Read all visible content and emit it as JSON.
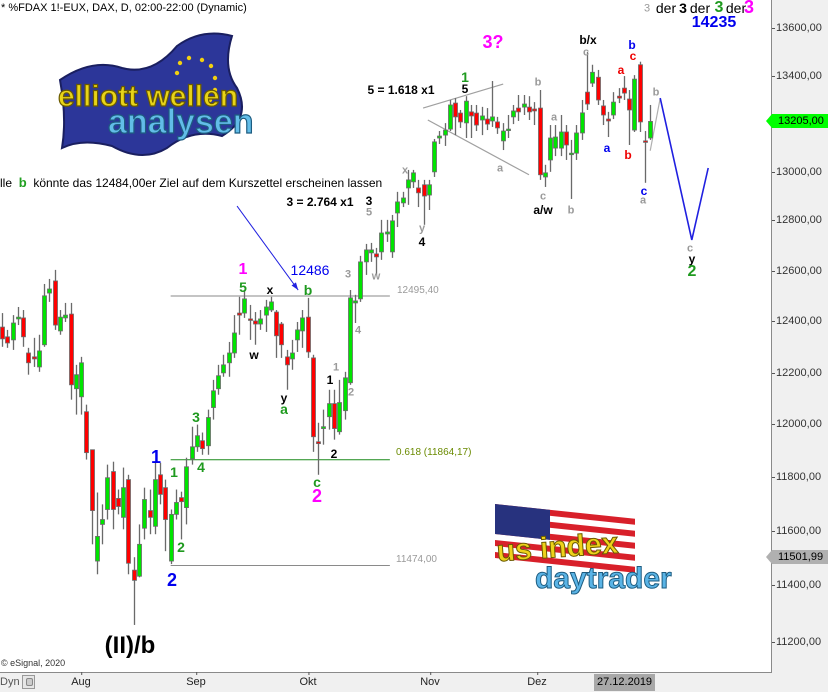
{
  "header": {
    "title": "* %FDAX 1!-EUX, DAX, D, 02:00-22:00 (Dynamic)"
  },
  "note": {
    "prefix": "lle",
    "wave": "b",
    "text": "könnte das 12484,00er Ziel auf dem Kurszettel erscheinen lassen"
  },
  "copyright": "© eSignal, 2020",
  "logos": {
    "elliott": {
      "line1": "elliott wellen",
      "line2": "analysen"
    },
    "usindex": {
      "line1": "us index",
      "line2": "daytrader"
    }
  },
  "labels": [
    "3",
    "der",
    "3",
    "der",
    "3",
    "der",
    "3",
    "14235",
    "3?",
    "1",
    "5",
    "5 = 1.618 x1",
    "b/x",
    "c",
    "b",
    "c",
    "a",
    "b",
    "a",
    "a",
    "b",
    "b",
    "c",
    "a/w",
    "a",
    "b",
    "c",
    "a",
    "c",
    "y",
    "2",
    "x",
    "y",
    "4",
    "3 = 2.764 x1",
    "3",
    "5",
    "3",
    "w",
    "12486",
    "1",
    "5",
    "x",
    "b",
    "w",
    "y",
    "a",
    "1",
    "1",
    "4",
    "2",
    "2",
    "c",
    "2",
    "1",
    "1",
    "3",
    "4",
    "2",
    "2",
    "(II)/b"
  ],
  "level_labels": {
    "l1": "12495,40",
    "l2": "0.618 (11864,17)",
    "l3": "11474,00"
  },
  "price_axis": {
    "ticks": [
      "13600,00",
      "13400,00",
      "13000,00",
      "12800,00",
      "12600,00",
      "12400,00",
      "12200,00",
      "12000,00",
      "11800,00",
      "11600,00",
      "11400,00",
      "11200,00"
    ],
    "current_price": "13205,00",
    "marker_price": "11501,99"
  },
  "time_axis": {
    "months": [
      "Aug",
      "Sep",
      "Okt",
      "Nov",
      "Dez"
    ],
    "cursor_date": "27.12.2019",
    "dyn_label": "Dyn"
  },
  "colors": {
    "up": "#00e400",
    "down": "#ff0000",
    "wick": "#6a6a6a",
    "projection": "#2020e0",
    "level_fib": "#1a8a1a",
    "level": "#8a8a8a",
    "arrow": "#2020e0"
  },
  "chart_data": {
    "type": "candlestick",
    "title": "* %FDAX 1!-EUX, DAX, D, 02:00-22:00 (Dynamic)",
    "y_scale": "log",
    "ylim": [
      11120,
      13700
    ],
    "y_ticks": [
      13600,
      13400,
      13000,
      12800,
      12600,
      12400,
      12200,
      12000,
      11800,
      11600,
      11400,
      11200
    ],
    "x_ticks": [
      {
        "label": "Aug",
        "bar": 15
      },
      {
        "label": "Sep",
        "bar": 37
      },
      {
        "label": "Okt",
        "bar": 58
      },
      {
        "label": "Nov",
        "bar": 81
      },
      {
        "label": "Dez",
        "bar": 101.5
      }
    ],
    "ohlc_fields": [
      "open",
      "high",
      "low",
      "close"
    ],
    "ohlc": [
      [
        12373,
        12428,
        12296,
        12327
      ],
      [
        12335,
        12362,
        12292,
        12311
      ],
      [
        12323,
        12420,
        12284,
        12389
      ],
      [
        12405,
        12452,
        12381,
        12412
      ],
      [
        12409,
        12440,
        12296,
        12335
      ],
      [
        12272,
        12292,
        12188,
        12234
      ],
      [
        12257,
        12331,
        12218,
        12249
      ],
      [
        12218,
        12343,
        12199,
        12280
      ],
      [
        12304,
        12543,
        12296,
        12496
      ],
      [
        12507,
        12563,
        12472,
        12523
      ],
      [
        12555,
        12599,
        12362,
        12381
      ],
      [
        12358,
        12440,
        12343,
        12412
      ],
      [
        12409,
        12468,
        12393,
        12420
      ],
      [
        12424,
        12468,
        12092,
        12149
      ],
      [
        12134,
        12226,
        12035,
        12188
      ],
      [
        12103,
        12257,
        12035,
        12234
      ],
      [
        12046,
        12073,
        11865,
        11891
      ],
      [
        11902,
        11902,
        11551,
        11675
      ],
      [
        11490,
        11742,
        11442,
        11580
      ],
      [
        11624,
        11698,
        11551,
        11642
      ],
      [
        11679,
        11846,
        11642,
        11797
      ],
      [
        11820,
        11857,
        11606,
        11679
      ],
      [
        11720,
        11753,
        11661,
        11690
      ],
      [
        11650,
        11835,
        11606,
        11760
      ],
      [
        11790,
        11808,
        11442,
        11482
      ],
      [
        11457,
        11504,
        11260,
        11420
      ],
      [
        11435,
        11624,
        11431,
        11551
      ],
      [
        11610,
        11760,
        11569,
        11716
      ],
      [
        11675,
        11753,
        11588,
        11650
      ],
      [
        11617,
        11853,
        11588,
        11790
      ],
      [
        11808,
        11853,
        11698,
        11735
      ],
      [
        11760,
        11790,
        11526,
        11642
      ],
      [
        11490,
        11679,
        11479,
        11661
      ],
      [
        11661,
        11753,
        11642,
        11705
      ],
      [
        11723,
        11745,
        11569,
        11708
      ],
      [
        11686,
        11872,
        11624,
        11838
      ],
      [
        11868,
        11989,
        11846,
        11913
      ],
      [
        11913,
        11997,
        11894,
        11955
      ],
      [
        11936,
        11967,
        11883,
        11906
      ],
      [
        11917,
        12054,
        11883,
        12024
      ],
      [
        12062,
        12168,
        12016,
        12126
      ],
      [
        12134,
        12226,
        12111,
        12184
      ],
      [
        12195,
        12265,
        12180,
        12226
      ],
      [
        12234,
        12315,
        12180,
        12272
      ],
      [
        12272,
        12420,
        12253,
        12350
      ],
      [
        12428,
        12492,
        12343,
        12420
      ],
      [
        12428,
        12519,
        12409,
        12484
      ],
      [
        12405,
        12460,
        12323,
        12401
      ],
      [
        12397,
        12432,
        12304,
        12385
      ],
      [
        12385,
        12440,
        12362,
        12405
      ],
      [
        12420,
        12480,
        12354,
        12452
      ],
      [
        12440,
        12492,
        12432,
        12472
      ],
      [
        12432,
        12440,
        12253,
        12339
      ],
      [
        12385,
        12393,
        12253,
        12304
      ],
      [
        12257,
        12284,
        12130,
        12226
      ],
      [
        12249,
        12323,
        12207,
        12272
      ],
      [
        12323,
        12393,
        12276,
        12362
      ],
      [
        12358,
        12440,
        12292,
        12409
      ],
      [
        12412,
        12488,
        12253,
        12276
      ],
      [
        12253,
        12265,
        11894,
        11951
      ],
      [
        11932,
        12004,
        11808,
        11925
      ],
      [
        11982,
        12054,
        11921,
        11989
      ],
      [
        12027,
        12130,
        11978,
        12077
      ],
      [
        12077,
        12130,
        11940,
        11982
      ],
      [
        11970,
        12168,
        11959,
        12081
      ],
      [
        12050,
        12199,
        12016,
        12176
      ],
      [
        12157,
        12519,
        12149,
        12488
      ],
      [
        12468,
        12500,
        12389,
        12476
      ],
      [
        12484,
        12655,
        12472,
        12631
      ],
      [
        12631,
        12703,
        12579,
        12679
      ],
      [
        12667,
        12707,
        12631,
        12679
      ],
      [
        12663,
        12687,
        12579,
        12651
      ],
      [
        12671,
        12800,
        12639,
        12747
      ],
      [
        12743,
        12800,
        12711,
        12751
      ],
      [
        12671,
        12820,
        12647,
        12796
      ],
      [
        12828,
        12914,
        12771,
        12873
      ],
      [
        12869,
        12914,
        12852,
        12889
      ],
      [
        12930,
        13004,
        12861,
        12963
      ],
      [
        12955,
        13004,
        12930,
        12992
      ],
      [
        12930,
        12963,
        12852,
        12910
      ],
      [
        12943,
        12963,
        12780,
        12897
      ],
      [
        12901,
        12963,
        12840,
        12943
      ],
      [
        12996,
        13132,
        12975,
        13120
      ],
      [
        13136,
        13165,
        13111,
        13144
      ],
      [
        13148,
        13198,
        13103,
        13169
      ],
      [
        13173,
        13295,
        13165,
        13274
      ],
      [
        13282,
        13303,
        13148,
        13224
      ],
      [
        13240,
        13253,
        13178,
        13203
      ],
      [
        13199,
        13311,
        13136,
        13290
      ],
      [
        13245,
        13274,
        13136,
        13228
      ],
      [
        13240,
        13274,
        13165,
        13190
      ],
      [
        13211,
        13266,
        13148,
        13228
      ],
      [
        13215,
        13261,
        13169,
        13194
      ],
      [
        13207,
        13375,
        13182,
        13224
      ],
      [
        13203,
        13224,
        13153,
        13178
      ],
      [
        13124,
        13198,
        13086,
        13165
      ],
      [
        13169,
        13232,
        13136,
        13173
      ],
      [
        13224,
        13274,
        13194,
        13249
      ],
      [
        13261,
        13316,
        13207,
        13245
      ],
      [
        13265,
        13316,
        13232,
        13278
      ],
      [
        13265,
        13311,
        13211,
        13245
      ],
      [
        13257,
        13286,
        13190,
        13249
      ],
      [
        13261,
        13337,
        12963,
        12984
      ],
      [
        12975,
        13025,
        12934,
        12992
      ],
      [
        13045,
        13190,
        12996,
        13136
      ],
      [
        13094,
        13190,
        13061,
        13140
      ],
      [
        13094,
        13232,
        13061,
        13161
      ],
      [
        13161,
        13190,
        13045,
        13107
      ],
      [
        13069,
        13128,
        12885,
        13073
      ],
      [
        13073,
        13190,
        13045,
        13157
      ],
      [
        13157,
        13295,
        13128,
        13241
      ],
      [
        13328,
        13498,
        13253,
        13278
      ],
      [
        13366,
        13444,
        13350,
        13412
      ],
      [
        13391,
        13422,
        13274,
        13295
      ],
      [
        13270,
        13295,
        13190,
        13232
      ],
      [
        13215,
        13245,
        13140,
        13207
      ],
      [
        13232,
        13328,
        13215,
        13286
      ],
      [
        13311,
        13345,
        13282,
        13303
      ],
      [
        13345,
        13396,
        13295,
        13324
      ],
      [
        13299,
        13337,
        13107,
        13253
      ],
      [
        13169,
        13400,
        13161,
        13383
      ],
      [
        13444,
        13457,
        13161,
        13203
      ],
      [
        13124,
        13165,
        12951,
        13120
      ],
      [
        13136,
        13274,
        13128,
        13205
      ]
    ],
    "levels": [
      {
        "price": 12495.4,
        "label": "12495,40",
        "from_bar": 32,
        "to_bar": 73.6,
        "color": "#8a8a8a"
      },
      {
        "price": 11864.17,
        "label": "0.618 (11864,17)",
        "from_bar": 32,
        "to_bar": 73.6,
        "color": "#1a8a1a"
      },
      {
        "price": 11474.0,
        "label": "11474,00",
        "from_bar": 32,
        "to_bar": 73.6,
        "color": "#8a8a8a"
      }
    ],
    "trendlines": [
      {
        "points": [
          [
            79.9,
            13261
          ],
          [
            95.1,
            13362
          ]
        ],
        "color": "#a0a0a0"
      },
      {
        "points": [
          [
            80.8,
            13211
          ],
          [
            100,
            12984
          ]
        ],
        "color": "#a0a0a0"
      },
      {
        "points": [
          [
            123,
            13083
          ],
          [
            124.9,
            13303
          ]
        ],
        "color": "#b0b0b0"
      }
    ],
    "projection": {
      "points": [
        [
          124.9,
          13303
        ],
        [
          130.9,
          12719
        ],
        [
          134,
          13012
        ]
      ],
      "color": "#2020e0"
    },
    "arrow": {
      "from": [
        44.6,
        12856
      ],
      "to": [
        56.2,
        12519
      ],
      "color": "#2020e0"
    }
  }
}
